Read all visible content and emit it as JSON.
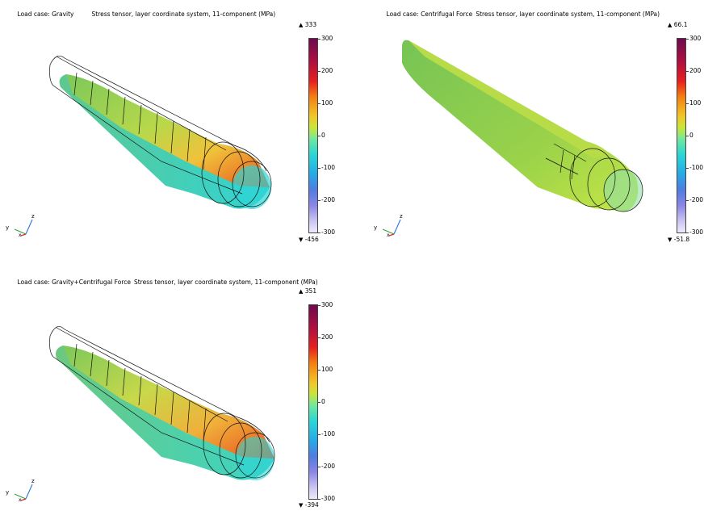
{
  "subtitle": "Stress tensor, layer coordinate system, 11-component (MPa)",
  "colorbar_ticks": [
    "300",
    "200",
    "100",
    "0",
    "-100",
    "-200",
    "-300"
  ],
  "triad": {
    "y": "y",
    "z": "z",
    "x": "x"
  },
  "panels": [
    {
      "title": "Load case: Gravity",
      "max": "333",
      "min": "-456",
      "shape": "gravity"
    },
    {
      "title": "Load case: Centrifugal Force",
      "max": "66.1",
      "min": "-51.8",
      "shape": "centrifugal"
    },
    {
      "title": "Load case: Gravity+Centrifugal Force",
      "max": "351",
      "min": "-394",
      "shape": "combined"
    }
  ],
  "colors": {
    "high": "#e63c1e",
    "mid": "#f0c23a",
    "green": "#7cc85a",
    "cyan": "#2fd4d4"
  }
}
